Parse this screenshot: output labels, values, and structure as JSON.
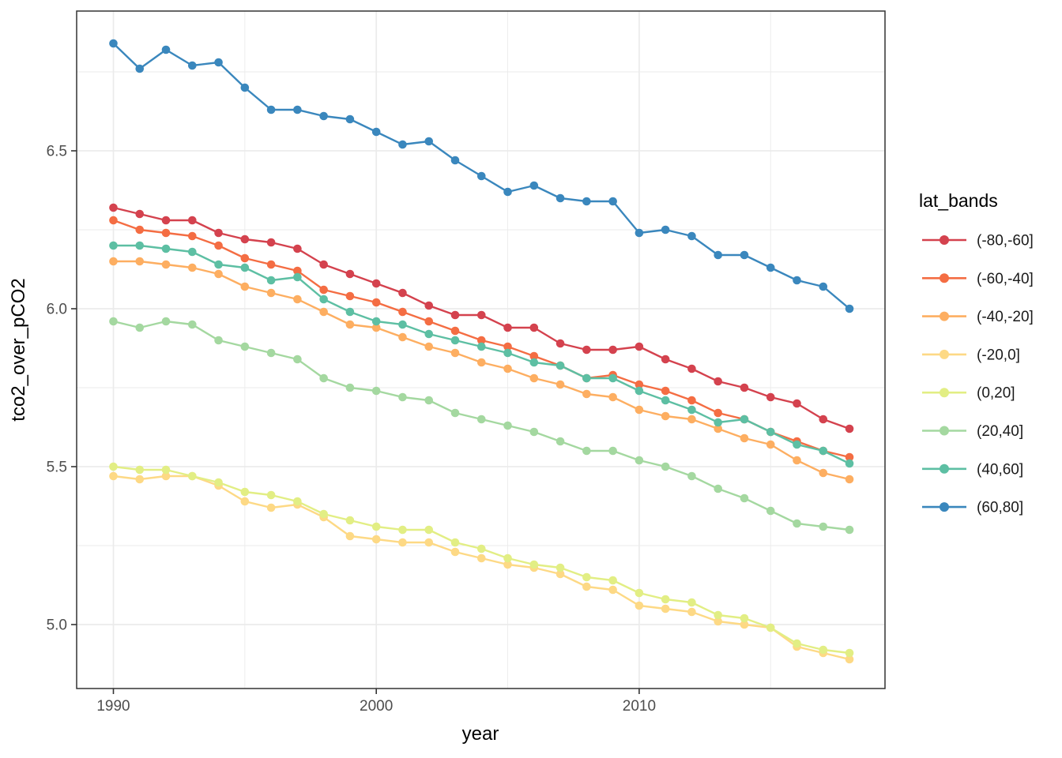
{
  "figure": {
    "xlabel": "year",
    "ylabel": "tco2_over_pCO2",
    "legend_title": "lat_bands"
  },
  "chart_data": {
    "type": "line",
    "title": "",
    "xlabel": "year",
    "ylabel": "tco2_over_pCO2",
    "grid": true,
    "legend_position": "right",
    "legend_title": "lat_bands",
    "x": [
      1990,
      1991,
      1992,
      1993,
      1994,
      1995,
      1996,
      1997,
      1998,
      1999,
      2000,
      2001,
      2002,
      2003,
      2004,
      2005,
      2006,
      2007,
      2008,
      2009,
      2010,
      2011,
      2012,
      2013,
      2014,
      2015,
      2016,
      2017,
      2018
    ],
    "xlim": [
      1988.6,
      2019.4
    ],
    "ylim": [
      4.79,
      6.94
    ],
    "x_ticks_major": [
      1990,
      2000,
      2010
    ],
    "x_tick_labels": [
      "1990",
      "2000",
      "2010"
    ],
    "x_ticks_minor": [
      1995,
      2005,
      2015
    ],
    "y_ticks_major": [
      6.5,
      6.0,
      5.5,
      5.0
    ],
    "y_tick_labels": [
      "6.5",
      "6.0",
      "5.5",
      "5.0"
    ],
    "y_ticks_minor": [
      6.75,
      6.25,
      5.75,
      5.25
    ],
    "series": [
      {
        "name": "(-80,-60]",
        "color": "#d4424e",
        "values": [
          6.32,
          6.3,
          6.28,
          6.28,
          6.24,
          6.22,
          6.21,
          6.19,
          6.14,
          6.11,
          6.08,
          6.05,
          6.01,
          5.98,
          5.98,
          5.94,
          5.94,
          5.89,
          5.87,
          5.87,
          5.88,
          5.84,
          5.81,
          5.77,
          5.75,
          5.72,
          5.7,
          5.65,
          5.62
        ]
      },
      {
        "name": "(-60,-40]",
        "color": "#f46d43",
        "values": [
          6.28,
          6.25,
          6.24,
          6.23,
          6.2,
          6.16,
          6.14,
          6.12,
          6.06,
          6.04,
          6.02,
          5.99,
          5.96,
          5.93,
          5.9,
          5.88,
          5.85,
          5.82,
          5.78,
          5.79,
          5.76,
          5.74,
          5.71,
          5.67,
          5.65,
          5.61,
          5.58,
          5.55,
          5.53
        ]
      },
      {
        "name": "(-40,-20]",
        "color": "#fdae61",
        "values": [
          6.15,
          6.15,
          6.14,
          6.13,
          6.11,
          6.07,
          6.05,
          6.03,
          5.99,
          5.95,
          5.94,
          5.91,
          5.88,
          5.86,
          5.83,
          5.81,
          5.78,
          5.76,
          5.73,
          5.72,
          5.68,
          5.66,
          5.65,
          5.62,
          5.59,
          5.57,
          5.52,
          5.48,
          5.46
        ]
      },
      {
        "name": "(-20,0]",
        "color": "#fdd985",
        "values": [
          5.47,
          5.46,
          5.47,
          5.47,
          5.44,
          5.39,
          5.37,
          5.38,
          5.34,
          5.28,
          5.27,
          5.26,
          5.26,
          5.23,
          5.21,
          5.19,
          5.18,
          5.16,
          5.12,
          5.11,
          5.06,
          5.05,
          5.04,
          5.01,
          5.0,
          4.99,
          4.93,
          4.91,
          4.89
        ]
      },
      {
        "name": "(0,20]",
        "color": "#e2ee84",
        "values": [
          5.5,
          5.49,
          5.49,
          5.47,
          5.45,
          5.42,
          5.41,
          5.39,
          5.35,
          5.33,
          5.31,
          5.3,
          5.3,
          5.26,
          5.24,
          5.21,
          5.19,
          5.18,
          5.15,
          5.14,
          5.1,
          5.08,
          5.07,
          5.03,
          5.02,
          4.99,
          4.94,
          4.92,
          4.91
        ]
      },
      {
        "name": "(20,40]",
        "color": "#a4d8a0",
        "values": [
          5.96,
          5.94,
          5.96,
          5.95,
          5.9,
          5.88,
          5.86,
          5.84,
          5.78,
          5.75,
          5.74,
          5.72,
          5.71,
          5.67,
          5.65,
          5.63,
          5.61,
          5.58,
          5.55,
          5.55,
          5.52,
          5.5,
          5.47,
          5.43,
          5.4,
          5.36,
          5.32,
          5.31,
          5.3
        ]
      },
      {
        "name": "(40,60]",
        "color": "#5dbfa3",
        "values": [
          6.2,
          6.2,
          6.19,
          6.18,
          6.14,
          6.13,
          6.09,
          6.1,
          6.03,
          5.99,
          5.96,
          5.95,
          5.92,
          5.9,
          5.88,
          5.86,
          5.83,
          5.82,
          5.78,
          5.78,
          5.74,
          5.71,
          5.68,
          5.64,
          5.65,
          5.61,
          5.57,
          5.55,
          5.51
        ]
      },
      {
        "name": "(60,80]",
        "color": "#3a87bd",
        "values": [
          6.84,
          6.76,
          6.82,
          6.77,
          6.78,
          6.7,
          6.63,
          6.63,
          6.61,
          6.6,
          6.56,
          6.52,
          6.53,
          6.47,
          6.42,
          6.37,
          6.39,
          6.35,
          6.34,
          6.34,
          6.24,
          6.25,
          6.23,
          6.17,
          6.17,
          6.13,
          6.09,
          6.07,
          6.0
        ]
      }
    ]
  },
  "style": {
    "panel_background": "#ffffff",
    "panel_border": "#333333",
    "gridline_color": "#ebebeb",
    "tick_color": "#333333",
    "tick_label_color": "#4d4d4d",
    "axis_title_color": "#000000",
    "legend_text_color": "#1a1a1a"
  }
}
